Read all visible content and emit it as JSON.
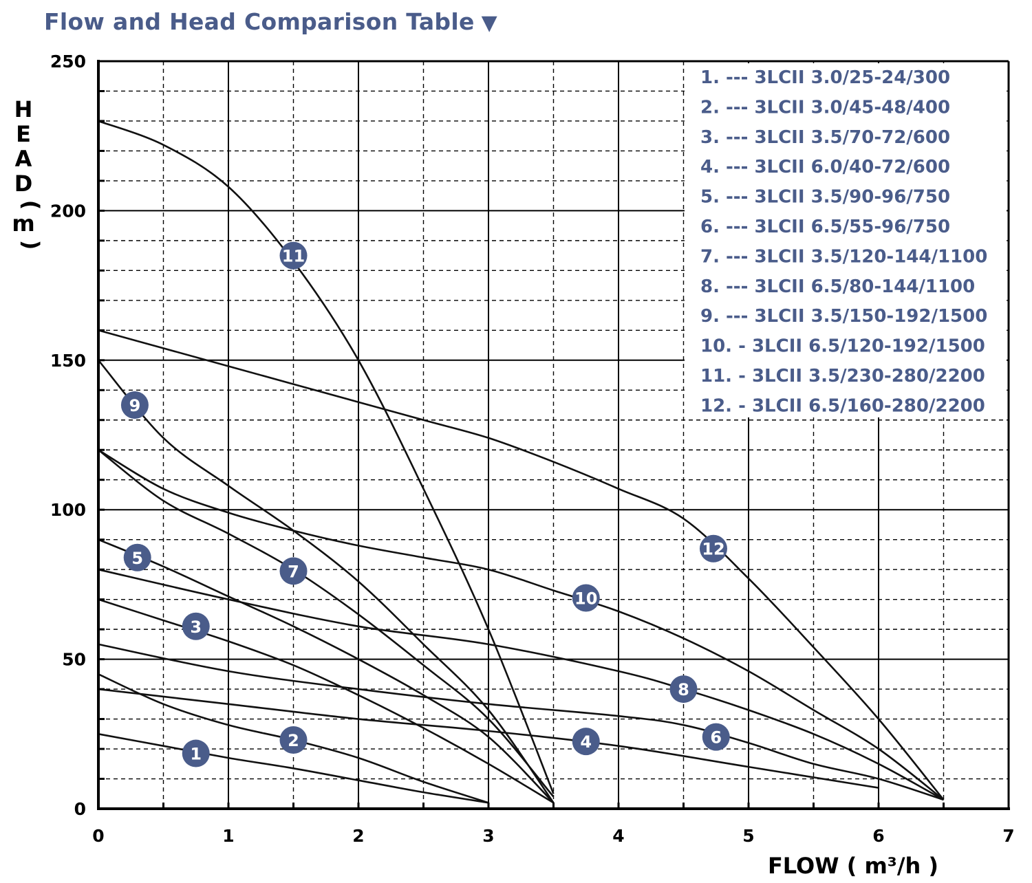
{
  "title": "Flow and Head Comparison Table",
  "title_icon": "triangle-down-icon",
  "colors": {
    "accent": "#4a5c8a",
    "curve": "#111111",
    "grid": "#000000",
    "background": "#ffffff"
  },
  "chart_data": {
    "type": "line",
    "xlabel": "FLOW ( m³/h )",
    "ylabel": "HEAD ( m )",
    "xlim": [
      0,
      7
    ],
    "ylim": [
      0,
      250
    ],
    "x_ticks": [
      "0",
      "1",
      "2",
      "3",
      "4",
      "5",
      "6",
      "7"
    ],
    "y_ticks": [
      "0",
      "50",
      "100",
      "150",
      "200",
      "250"
    ],
    "major_grid": {
      "x_step": 1,
      "y_step": 50
    },
    "minor_grid": {
      "x_step": 0.5,
      "y_step": 10,
      "style": "dashed"
    },
    "legend_position": "top-right",
    "series": [
      {
        "name": "1. --- 3LCII 3.0/25-24/300",
        "marker": "1",
        "marker_x": 0.75,
        "marker_y": 18.5,
        "x": [
          0,
          0.5,
          1,
          1.5,
          2,
          2.5,
          3
        ],
        "y": [
          25,
          21,
          17,
          13.5,
          9.5,
          5.5,
          2
        ]
      },
      {
        "name": "2. --- 3LCII 3.0/45-48/400",
        "marker": "2",
        "marker_x": 1.5,
        "marker_y": 23,
        "x": [
          0,
          0.5,
          1,
          1.5,
          2,
          2.5,
          3
        ],
        "y": [
          45,
          35,
          28,
          23,
          17,
          9,
          2
        ]
      },
      {
        "name": "3. --- 3LCII 3.5/70-72/600",
        "marker": "3",
        "marker_x": 0.75,
        "marker_y": 61,
        "x": [
          0,
          0.5,
          1,
          1.5,
          2,
          2.5,
          3,
          3.5
        ],
        "y": [
          70,
          63,
          56,
          48,
          38,
          27,
          15,
          2
        ]
      },
      {
        "name": "4. --- 3LCII 6.0/40-72/600",
        "marker": "4",
        "marker_x": 3.75,
        "marker_y": 22.5,
        "x": [
          0,
          1,
          2,
          3,
          4,
          5,
          6
        ],
        "y": [
          40,
          35,
          30,
          26,
          21,
          14,
          7
        ]
      },
      {
        "name": "5. --- 3LCII 3.5/90-96/750",
        "marker": "5",
        "marker_x": 0.3,
        "marker_y": 84,
        "x": [
          0,
          0.5,
          1,
          1.5,
          2,
          2.5,
          3,
          3.5
        ],
        "y": [
          90,
          81,
          71,
          61,
          50,
          38,
          24,
          2
        ]
      },
      {
        "name": "6. --- 3LCII 6.5/55-96/750",
        "marker": "6",
        "marker_x": 4.75,
        "marker_y": 24,
        "x": [
          0,
          1,
          2,
          3,
          4,
          4.5,
          5,
          5.5,
          6,
          6.5
        ],
        "y": [
          55,
          46,
          40,
          35,
          31,
          28,
          22,
          15,
          10,
          3
        ]
      },
      {
        "name": "7. --- 3LCII 3.5/120-144/1100",
        "marker": "7",
        "marker_x": 1.5,
        "marker_y": 79.5,
        "x": [
          0,
          0.5,
          1,
          1.5,
          2,
          2.5,
          3,
          3.5
        ],
        "y": [
          120,
          103,
          92,
          80,
          65,
          48,
          30,
          4
        ]
      },
      {
        "name": "8. --- 3LCII 6.5/80-144/1100",
        "marker": "8",
        "marker_x": 4.5,
        "marker_y": 40,
        "x": [
          0,
          1,
          2,
          3,
          4,
          4.5,
          5,
          5.5,
          6,
          6.5
        ],
        "y": [
          80,
          70,
          61,
          55,
          46,
          40,
          33,
          25,
          15,
          3
        ]
      },
      {
        "name": "9. --- 3LCII 3.5/150-192/1500",
        "marker": "9",
        "marker_x": 0.28,
        "marker_y": 135,
        "x": [
          0,
          0.5,
          1,
          1.5,
          2,
          2.5,
          3,
          3.5
        ],
        "y": [
          150,
          124,
          108,
          93,
          76,
          55,
          33,
          2
        ]
      },
      {
        "name": "10. - 3LCII 6.5/120-192/1500",
        "marker": "10",
        "marker_x": 3.75,
        "marker_y": 70.5,
        "x": [
          0,
          0.5,
          1,
          1.5,
          2,
          2.5,
          3,
          3.5,
          4,
          4.5,
          5,
          5.5,
          6,
          6.5
        ],
        "y": [
          120,
          107,
          99,
          93,
          88,
          84,
          80,
          73,
          66,
          57,
          46,
          33,
          20,
          3
        ]
      },
      {
        "name": "11. - 3LCII 3.5/230-280/2200",
        "marker": "11",
        "marker_x": 1.5,
        "marker_y": 185,
        "x": [
          0,
          0.5,
          1,
          1.5,
          2,
          2.5,
          3,
          3.5
        ],
        "y": [
          230,
          222,
          208,
          183,
          150,
          107,
          60,
          5
        ]
      },
      {
        "name": "12. - 3LCII 6.5/160-280/2200",
        "marker": "12",
        "marker_x": 4.73,
        "marker_y": 87,
        "x": [
          0,
          0.5,
          1,
          1.5,
          2,
          2.5,
          3,
          3.5,
          4,
          4.5,
          5,
          5.5,
          6,
          6.5
        ],
        "y": [
          160,
          154,
          148,
          142,
          136,
          130,
          124,
          116,
          107,
          97,
          77,
          54,
          30,
          3
        ]
      }
    ]
  }
}
